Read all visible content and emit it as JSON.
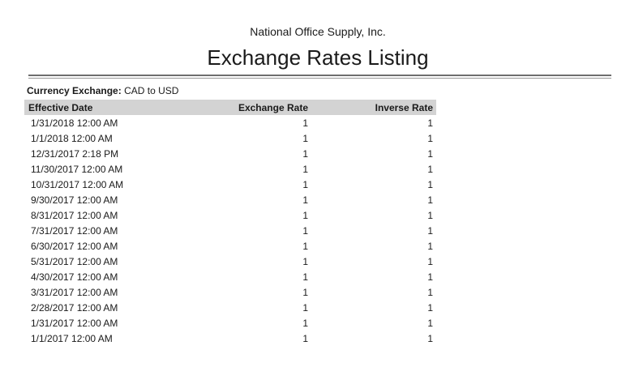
{
  "report": {
    "company": "National Office Supply, Inc.",
    "title": "Exchange Rates Listing",
    "filter": {
      "label": "Currency Exchange:",
      "value": "CAD to USD"
    },
    "table": {
      "columns": [
        "Effective Date",
        "Exchange Rate",
        "Inverse Rate"
      ],
      "rows": [
        {
          "date": "1/31/2018 12:00 AM",
          "rate": "1",
          "inverse": "1"
        },
        {
          "date": "1/1/2018 12:00 AM",
          "rate": "1",
          "inverse": "1"
        },
        {
          "date": "12/31/2017 2:18 PM",
          "rate": "1",
          "inverse": "1"
        },
        {
          "date": "11/30/2017 12:00 AM",
          "rate": "1",
          "inverse": "1"
        },
        {
          "date": "10/31/2017 12:00 AM",
          "rate": "1",
          "inverse": "1"
        },
        {
          "date": "9/30/2017 12:00 AM",
          "rate": "1",
          "inverse": "1"
        },
        {
          "date": "8/31/2017 12:00 AM",
          "rate": "1",
          "inverse": "1"
        },
        {
          "date": "7/31/2017 12:00 AM",
          "rate": "1",
          "inverse": "1"
        },
        {
          "date": "6/30/2017 12:00 AM",
          "rate": "1",
          "inverse": "1"
        },
        {
          "date": "5/31/2017 12:00 AM",
          "rate": "1",
          "inverse": "1"
        },
        {
          "date": "4/30/2017 12:00 AM",
          "rate": "1",
          "inverse": "1"
        },
        {
          "date": "3/31/2017 12:00 AM",
          "rate": "1",
          "inverse": "1"
        },
        {
          "date": "2/28/2017 12:00 AM",
          "rate": "1",
          "inverse": "1"
        },
        {
          "date": "1/31/2017 12:00 AM",
          "rate": "1",
          "inverse": "1"
        },
        {
          "date": "1/1/2017 12:00 AM",
          "rate": "1",
          "inverse": "1"
        }
      ]
    },
    "colors": {
      "header_row_bg": "#d3d3d3",
      "rule_top": "#6e6e6e",
      "rule_bottom": "#999999",
      "text": "#1a1a1a",
      "page_bg": "#ffffff"
    }
  }
}
